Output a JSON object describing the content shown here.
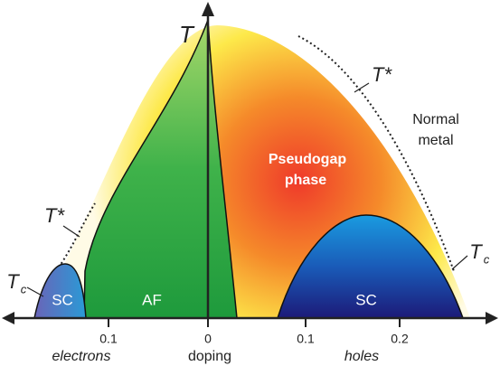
{
  "axis": {
    "y_label": "T",
    "x_label": "doping",
    "left_label": "electrons",
    "right_label": "holes",
    "ticks": [
      "0.1",
      "0",
      "0.1",
      "0.2"
    ]
  },
  "regions": {
    "pseudogap": [
      "Pseudogap",
      "phase"
    ],
    "normal": [
      "Normal",
      "metal"
    ],
    "af": "AF",
    "sc_left": "SC",
    "sc_right": "SC"
  },
  "lines": {
    "tstar_left": "T*",
    "tstar_right": "T*",
    "tc_left": {
      "symbol": "T",
      "subscript": "c"
    },
    "tc_right": {
      "symbol": "T",
      "subscript": "c"
    }
  }
}
